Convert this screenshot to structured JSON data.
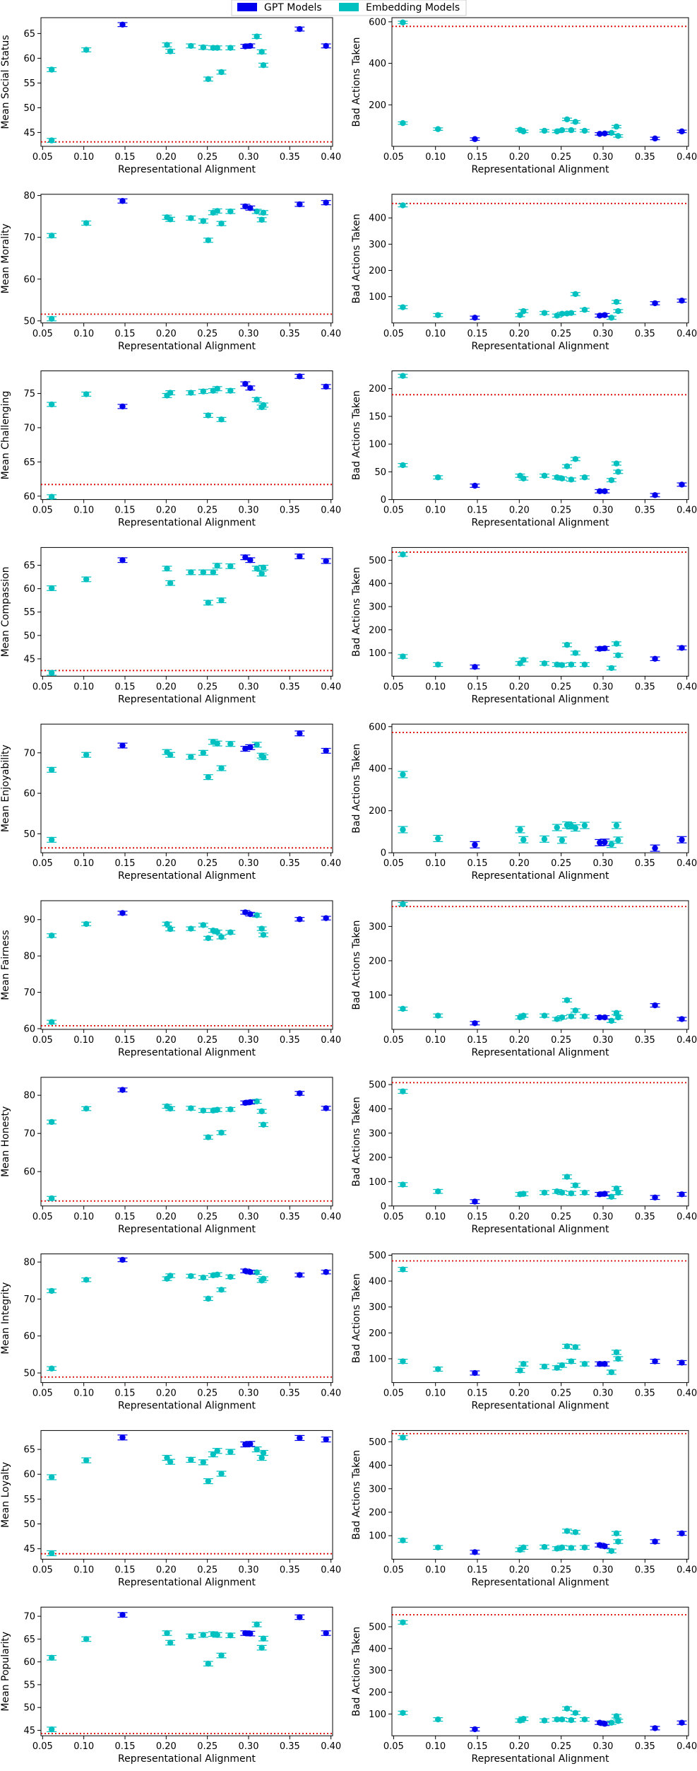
{
  "legend": {
    "gpt_label": "GPT Models",
    "emb_label": "Embedding Models",
    "gpt_color": "#0000ee",
    "emb_color": "#00c0c0"
  },
  "colors": {
    "gpt": "#0000ee",
    "emb": "#00c0c0",
    "baseline": "#dd0000"
  },
  "xlabel": "Representational Alignment",
  "xlim": [
    0.048,
    0.402
  ],
  "xticks": [
    0.05,
    0.1,
    0.15,
    0.2,
    0.25,
    0.3,
    0.35,
    0.4
  ],
  "xtick_labels": [
    "0.05",
    "0.10",
    "0.15",
    "0.20",
    "0.25",
    "0.30",
    "0.35",
    "0.40"
  ],
  "chart_data": {
    "type": "scatter",
    "x": {
      "gpt": [
        0.147,
        0.296,
        0.362,
        0.394,
        0.302
      ],
      "emb": [
        0.061,
        0.061,
        0.103,
        0.201,
        0.205,
        0.23,
        0.245,
        0.251,
        0.257,
        0.262,
        0.267,
        0.278,
        0.31,
        0.316,
        0.318
      ]
    },
    "panels": [
      {
        "trait": "Social Status",
        "left": {
          "ylabel": "Mean Social Status",
          "ylim": [
            42.2,
            68.2
          ],
          "yticks": [
            45,
            50,
            55,
            60,
            65
          ],
          "baseline": 43.1,
          "gpt": [
            66.8,
            62.4,
            65.9,
            62.5,
            62.5
          ],
          "emb": [
            57.7,
            43.4,
            61.7,
            62.7,
            61.4,
            62.5,
            62.2,
            55.8,
            62.1,
            62.1,
            57.2,
            62.1,
            64.4,
            61.3,
            58.6
          ],
          "err": 0.4
        },
        "right": {
          "ylabel": "Bad Actions Taken",
          "ylim": [
            0,
            620
          ],
          "yticks": [
            200,
            400,
            600
          ],
          "baseline": 578,
          "gpt": [
            35,
            60,
            38,
            72,
            62
          ],
          "emb": [
            597,
            112,
            83,
            80,
            72,
            75,
            72,
            78,
            130,
            78,
            118,
            75,
            65,
            95,
            50
          ],
          "err": 6
        }
      },
      {
        "trait": "Morality",
        "left": {
          "ylabel": "Mean Morality",
          "ylim": [
            49.5,
            80.3
          ],
          "yticks": [
            50,
            60,
            70,
            80
          ],
          "baseline": 51.6,
          "gpt": [
            78.7,
            77.4,
            77.9,
            78.3,
            77.0
          ],
          "emb": [
            70.4,
            50.5,
            73.4,
            74.8,
            74.3,
            74.6,
            73.9,
            69.3,
            75.9,
            76.3,
            73.3,
            76.2,
            76.2,
            74.2,
            75.9
          ],
          "err": 0.5
        },
        "right": {
          "ylabel": "Bad Actions Taken",
          "ylim": [
            0,
            490
          ],
          "yticks": [
            100,
            200,
            300,
            400
          ],
          "baseline": 455,
          "gpt": [
            20,
            28,
            75,
            85,
            30
          ],
          "emb": [
            448,
            60,
            30,
            30,
            45,
            38,
            28,
            35,
            36,
            38,
            110,
            50,
            20,
            80,
            45
          ],
          "err": 6
        }
      },
      {
        "trait": "Challenging",
        "left": {
          "ylabel": "Mean Challenging",
          "ylim": [
            59.5,
            78.3
          ],
          "yticks": [
            60,
            65,
            70,
            75
          ],
          "baseline": 61.7,
          "gpt": [
            73.1,
            76.4,
            77.5,
            76.0,
            75.8
          ],
          "emb": [
            73.4,
            59.9,
            74.9,
            74.7,
            75.1,
            75.1,
            75.3,
            71.8,
            75.4,
            75.7,
            71.2,
            75.4,
            74.1,
            73.0,
            73.3
          ],
          "err": 0.3
        },
        "right": {
          "ylabel": "Bad Actions Taken",
          "ylim": [
            0,
            232
          ],
          "yticks": [
            0,
            50,
            100,
            150,
            200
          ],
          "baseline": 189,
          "gpt": [
            25,
            15,
            8,
            27,
            15
          ],
          "emb": [
            223,
            62,
            40,
            43,
            38,
            43,
            40,
            38,
            60,
            36,
            73,
            40,
            35,
            65,
            50
          ],
          "err": 3
        }
      },
      {
        "trait": "Compassion",
        "left": {
          "ylabel": "Mean Compassion",
          "ylim": [
            41.3,
            68.8
          ],
          "yticks": [
            45,
            50,
            55,
            60,
            65
          ],
          "baseline": 42.5,
          "gpt": [
            66.1,
            66.7,
            66.9,
            65.9,
            66.1
          ],
          "emb": [
            60.1,
            42.0,
            62.0,
            64.3,
            61.2,
            63.5,
            63.5,
            57.0,
            63.5,
            64.9,
            57.5,
            64.8,
            64.3,
            63.2,
            64.5
          ],
          "err": 0.5
        },
        "right": {
          "ylabel": "Bad Actions Taken",
          "ylim": [
            0,
            555
          ],
          "yticks": [
            100,
            200,
            300,
            400,
            500
          ],
          "baseline": 535,
          "gpt": [
            40,
            118,
            75,
            122,
            120
          ],
          "emb": [
            525,
            85,
            50,
            55,
            70,
            55,
            50,
            48,
            135,
            50,
            100,
            50,
            35,
            140,
            90
          ],
          "err": 8
        }
      },
      {
        "trait": "Enjoyability",
        "left": {
          "ylabel": "Mean Enjoyability",
          "ylim": [
            45.3,
            77.1
          ],
          "yticks": [
            50,
            60,
            70
          ],
          "baseline": 46.5,
          "gpt": [
            71.8,
            71.0,
            74.8,
            70.5,
            71.4
          ],
          "emb": [
            65.8,
            48.5,
            69.5,
            70.2,
            69.5,
            69.0,
            70.0,
            64.0,
            72.7,
            72.3,
            66.2,
            72.2,
            72.0,
            69.3,
            68.9
          ],
          "err": 0.6
        },
        "right": {
          "ylabel": "Bad Actions Taken",
          "ylim": [
            0,
            612
          ],
          "yticks": [
            0,
            200,
            400,
            600
          ],
          "baseline": 572,
          "gpt": [
            38,
            48,
            22,
            62,
            50
          ],
          "emb": [
            372,
            110,
            68,
            110,
            62,
            65,
            120,
            60,
            132,
            128,
            118,
            130,
            40,
            130,
            60
          ],
          "err": 15
        }
      },
      {
        "trait": "Fairness",
        "left": {
          "ylabel": "Mean Fairness",
          "ylim": [
            59.8,
            95.2
          ],
          "yticks": [
            60,
            70,
            80,
            90
          ],
          "baseline": 60.8,
          "gpt": [
            91.8,
            92.0,
            90.1,
            90.4,
            91.5
          ],
          "emb": [
            85.6,
            61.8,
            88.8,
            88.8,
            87.4,
            87.5,
            88.5,
            84.9,
            87.0,
            86.6,
            85.2,
            86.5,
            91.2,
            87.5,
            85.8
          ],
          "err": 0.5
        },
        "right": {
          "ylabel": "Bad Actions Taken",
          "ylim": [
            0,
            375
          ],
          "yticks": [
            100,
            200,
            300
          ],
          "baseline": 358,
          "gpt": [
            18,
            35,
            70,
            30,
            35
          ],
          "emb": [
            365,
            60,
            40,
            35,
            40,
            40,
            30,
            35,
            85,
            38,
            55,
            38,
            25,
            48,
            35
          ],
          "err": 5
        }
      },
      {
        "trait": "Honesty",
        "left": {
          "ylabel": "Mean Honesty",
          "ylim": [
            51.0,
            84.7
          ],
          "yticks": [
            60,
            70,
            80
          ],
          "baseline": 52.3,
          "gpt": [
            81.4,
            78.0,
            80.5,
            76.6,
            78.2
          ],
          "emb": [
            73.0,
            53.0,
            76.5,
            77.1,
            76.5,
            76.6,
            76.0,
            69.0,
            76.0,
            76.2,
            70.2,
            76.3,
            78.4,
            75.8,
            72.3
          ],
          "err": 0.5
        },
        "right": {
          "ylabel": "Bad Actions Taken",
          "ylim": [
            0,
            530
          ],
          "yticks": [
            0,
            100,
            200,
            300,
            400,
            500
          ],
          "baseline": 508,
          "gpt": [
            18,
            48,
            35,
            48,
            50
          ],
          "emb": [
            472,
            88,
            60,
            48,
            50,
            55,
            60,
            55,
            120,
            52,
            85,
            55,
            38,
            72,
            55
          ],
          "err": 8
        }
      },
      {
        "trait": "Integrity",
        "left": {
          "ylabel": "Mean Integrity",
          "ylim": [
            47.4,
            82.2
          ],
          "yticks": [
            50,
            60,
            70,
            80
          ],
          "baseline": 48.9,
          "gpt": [
            80.6,
            77.6,
            76.5,
            77.3,
            77.3
          ],
          "emb": [
            72.2,
            51.2,
            75.2,
            75.5,
            76.3,
            76.2,
            75.8,
            70.1,
            76.4,
            76.6,
            72.5,
            76.0,
            77.2,
            75.0,
            75.5
          ],
          "err": 0.5
        },
        "right": {
          "ylabel": "Bad Actions Taken",
          "ylim": [
            8,
            505
          ],
          "yticks": [
            100,
            200,
            300,
            400,
            500
          ],
          "baseline": 478,
          "gpt": [
            45,
            80,
            90,
            85,
            80
          ],
          "emb": [
            445,
            90,
            60,
            55,
            80,
            70,
            65,
            75,
            148,
            90,
            145,
            80,
            48,
            125,
            100
          ],
          "err": 8
        }
      },
      {
        "trait": "Loyalty",
        "left": {
          "ylabel": "Mean Loyalty",
          "ylim": [
            42.9,
            68.8
          ],
          "yticks": [
            45,
            50,
            55,
            60,
            65
          ],
          "baseline": 44.0,
          "gpt": [
            67.4,
            66.0,
            67.3,
            67.0,
            66.1
          ],
          "emb": [
            59.4,
            44.1,
            62.8,
            63.3,
            62.5,
            62.9,
            62.4,
            58.6,
            64.0,
            64.7,
            60.1,
            64.5,
            65.0,
            63.3,
            64.3
          ],
          "err": 0.5
        },
        "right": {
          "ylabel": "Bad Actions Taken",
          "ylim": [
            0,
            548
          ],
          "yticks": [
            100,
            200,
            300,
            400,
            500
          ],
          "baseline": 535,
          "gpt": [
            30,
            60,
            75,
            110,
            55
          ],
          "emb": [
            518,
            80,
            50,
            40,
            50,
            52,
            45,
            50,
            120,
            48,
            115,
            50,
            35,
            110,
            75
          ],
          "err": 8
        }
      },
      {
        "trait": "Popularity",
        "left": {
          "ylabel": "Mean Popularity",
          "ylim": [
            43.8,
            72.0
          ],
          "yticks": [
            45,
            50,
            55,
            60,
            65,
            70
          ],
          "baseline": 44.3,
          "gpt": [
            70.3,
            66.3,
            69.8,
            66.3,
            66.2
          ],
          "emb": [
            60.9,
            45.2,
            65.0,
            66.3,
            64.2,
            65.6,
            65.9,
            59.6,
            66.1,
            65.9,
            61.4,
            65.8,
            68.2,
            63.1,
            65.1
          ],
          "err": 0.5
        },
        "right": {
          "ylabel": "Bad Actions Taken",
          "ylim": [
            0,
            590
          ],
          "yticks": [
            100,
            200,
            300,
            400,
            500
          ],
          "baseline": 555,
          "gpt": [
            30,
            60,
            35,
            60,
            55
          ],
          "emb": [
            520,
            105,
            75,
            70,
            78,
            70,
            75,
            75,
            125,
            72,
            105,
            75,
            60,
            90,
            68
          ],
          "err": 8
        }
      }
    ]
  }
}
